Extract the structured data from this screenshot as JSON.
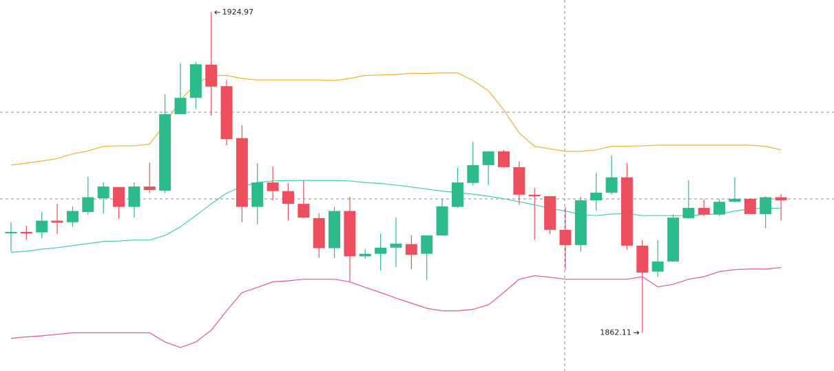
{
  "chart_data": {
    "type": "candlestick",
    "ylim": [
      1854.6,
      1927.4
    ],
    "up_color": "#2dba8c",
    "down_color": "#ee4f5f",
    "open": [
      1881.6,
      1881.9,
      1881.8,
      1884.1,
      1883.8,
      1885.8,
      1888.5,
      1890.7,
      1886.8,
      1890.8,
      1890.0,
      1905.0,
      1908.2,
      1914.7,
      1910.5,
      1900.3,
      1886.8,
      1891.6,
      1889.9,
      1887.4,
      1884.6,
      1878.7,
      1886.0,
      1877.1,
      1877.6,
      1878.8,
      1879.5,
      1877.6,
      1881.2,
      1886.8,
      1891.5,
      1895.0,
      1897.7,
      1894.6,
      1889.2,
      1888.9,
      1882.3,
      1879.3,
      1888.1,
      1889.6,
      1892.6,
      1879.2,
      1874.1,
      1876.1,
      1884.6,
      1886.6,
      1885.3,
      1887.8,
      1888.4,
      1885.4,
      1888.7
    ],
    "high": [
      1883.8,
      1883.1,
      1885.8,
      1887.4,
      1886.9,
      1892.7,
      1891.6,
      1890.7,
      1891.6,
      1895.5,
      1908.9,
      1915.0,
      1915.3,
      1924.97,
      1911.7,
      1902.8,
      1895.4,
      1894.7,
      1891.5,
      1892.0,
      1885.5,
      1886.8,
      1888.8,
      1878.5,
      1881.5,
      1884.7,
      1881.2,
      1881.2,
      1888.3,
      1894.5,
      1899.6,
      1897.7,
      1898.0,
      1895.7,
      1890.5,
      1888.9,
      1886.8,
      1888.8,
      1893.5,
      1896.9,
      1895.4,
      1880.3,
      1880.3,
      1885.3,
      1892.0,
      1888.3,
      1888.3,
      1892.6,
      1888.5,
      1888.9,
      1889.3
    ],
    "low": [
      1878.1,
      1880.4,
      1880.7,
      1881.5,
      1882.9,
      1885.3,
      1885.5,
      1884.5,
      1884.7,
      1889.5,
      1889.5,
      1905.0,
      1906.1,
      1904.7,
      1898.9,
      1883.8,
      1883.4,
      1888.1,
      1884.1,
      1884.6,
      1876.8,
      1876.8,
      1872.1,
      1876.6,
      1874.3,
      1875.0,
      1874.6,
      1872.5,
      1881.2,
      1886.6,
      1891.0,
      1891.1,
      1894.5,
      1887.2,
      1880.4,
      1881.5,
      1874.5,
      1878.0,
      1886.1,
      1889.2,
      1878.4,
      1862.11,
      1873.1,
      1876.0,
      1884.5,
      1885.0,
      1885.0,
      1887.7,
      1885.4,
      1882.6,
      1884.1
    ],
    "close": [
      1881.9,
      1881.6,
      1884.1,
      1883.7,
      1886.0,
      1888.7,
      1890.8,
      1886.8,
      1890.8,
      1890.1,
      1905.0,
      1908.2,
      1914.8,
      1910.4,
      1900.1,
      1886.8,
      1891.6,
      1889.9,
      1887.4,
      1884.7,
      1878.7,
      1886.0,
      1877.1,
      1877.6,
      1878.8,
      1879.6,
      1877.4,
      1881.2,
      1886.9,
      1891.6,
      1895.0,
      1897.7,
      1894.6,
      1889.2,
      1888.9,
      1882.3,
      1879.3,
      1888.1,
      1889.6,
      1892.6,
      1879.2,
      1873.9,
      1876.1,
      1884.7,
      1886.6,
      1885.3,
      1887.8,
      1888.4,
      1885.4,
      1888.7,
      1888.1
    ],
    "lines": [
      {
        "color": "#f2b130",
        "values": [
          1895.0,
          1895.4,
          1895.8,
          1896.3,
          1897.2,
          1897.8,
          1898.7,
          1898.8,
          1898.8,
          1899.1,
          1903.1,
          1907.8,
          1910.9,
          1912.6,
          1912.6,
          1912.0,
          1911.7,
          1911.7,
          1911.7,
          1911.7,
          1911.7,
          1911.6,
          1912.0,
          1912.6,
          1912.7,
          1912.8,
          1913.0,
          1913.0,
          1913.1,
          1913.1,
          1911.6,
          1909.6,
          1905.8,
          1901.3,
          1898.7,
          1898.2,
          1897.7,
          1897.7,
          1898.0,
          1898.7,
          1898.7,
          1898.8,
          1898.9,
          1898.9,
          1898.9,
          1898.9,
          1898.9,
          1898.9,
          1898.9,
          1898.7,
          1898.0
        ]
      },
      {
        "color": "#40cfa8",
        "values": [
          1877.9,
          1878.1,
          1878.5,
          1878.8,
          1879.2,
          1879.6,
          1880.0,
          1880.1,
          1880.3,
          1880.3,
          1881.2,
          1882.9,
          1885.1,
          1887.4,
          1889.5,
          1890.8,
          1891.6,
          1891.9,
          1892.0,
          1892.0,
          1892.0,
          1892.0,
          1891.9,
          1891.6,
          1891.4,
          1891.1,
          1890.7,
          1890.3,
          1889.9,
          1889.6,
          1889.3,
          1888.9,
          1888.4,
          1887.8,
          1887.2,
          1886.5,
          1886.0,
          1885.3,
          1885.1,
          1885.4,
          1885.5,
          1885.1,
          1885.1,
          1885.1,
          1885.1,
          1885.3,
          1885.4,
          1886.0,
          1886.4,
          1886.6,
          1886.5
        ]
      },
      {
        "color": "#e2559c",
        "values": [
          1861.0,
          1861.3,
          1861.5,
          1861.8,
          1862.1,
          1862.1,
          1862.1,
          1862.1,
          1862.1,
          1862.1,
          1860.3,
          1859.2,
          1860.3,
          1862.6,
          1866.4,
          1870.0,
          1871.0,
          1872.1,
          1872.3,
          1872.6,
          1872.6,
          1872.6,
          1872.1,
          1871.0,
          1870.0,
          1868.9,
          1867.9,
          1866.9,
          1866.4,
          1866.4,
          1866.7,
          1867.6,
          1870.0,
          1872.6,
          1873.3,
          1873.0,
          1872.6,
          1872.6,
          1872.6,
          1872.6,
          1872.6,
          1873.1,
          1871.1,
          1871.6,
          1872.6,
          1873.1,
          1874.1,
          1874.5,
          1874.6,
          1874.6,
          1874.9
        ]
      }
    ],
    "max_label": "1924.97",
    "min_label": "1862.11"
  }
}
